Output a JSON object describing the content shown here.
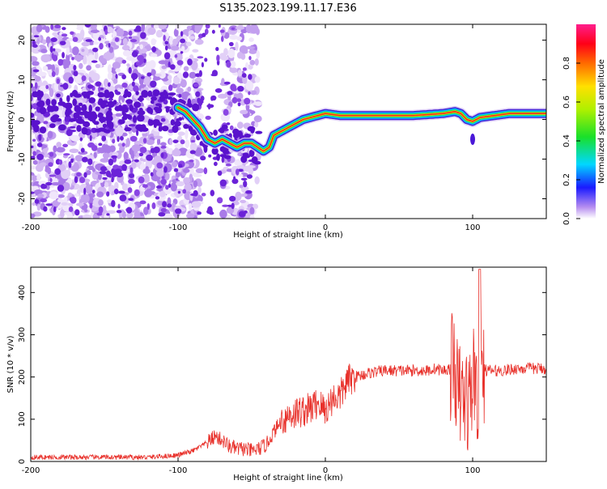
{
  "title": "S135.2023.199.11.17.E36",
  "colors": {
    "snr_line": "#e8302a",
    "frame": "#000000"
  },
  "chart_data": [
    {
      "id": "spectrogram",
      "type": "heatmap",
      "xlabel": "Height of straight line (km)",
      "ylabel": "Frequency (Hz)",
      "xlim": [
        -200,
        150
      ],
      "ylim": [
        -25,
        24
      ],
      "xticks": [
        -200,
        -100,
        0,
        100
      ],
      "yticks": [
        -20,
        -10,
        0,
        10,
        20
      ],
      "ridge": [
        [
          -100,
          3
        ],
        [
          -95,
          2
        ],
        [
          -90,
          0
        ],
        [
          -85,
          -2
        ],
        [
          -80,
          -5
        ],
        [
          -75,
          -6
        ],
        [
          -70,
          -5
        ],
        [
          -65,
          -6
        ],
        [
          -60,
          -7
        ],
        [
          -55,
          -6
        ],
        [
          -50,
          -6
        ],
        [
          -46,
          -7
        ],
        [
          -42,
          -8
        ],
        [
          -38,
          -7
        ],
        [
          -35,
          -4
        ],
        [
          -30,
          -3
        ],
        [
          -25,
          -2
        ],
        [
          -20,
          -1
        ],
        [
          -15,
          0
        ],
        [
          -10,
          0.5
        ],
        [
          -5,
          1
        ],
        [
          0,
          1.5
        ],
        [
          10,
          1
        ],
        [
          20,
          1
        ],
        [
          40,
          1
        ],
        [
          60,
          1
        ],
        [
          80,
          1.5
        ],
        [
          88,
          2
        ],
        [
          92,
          1.5
        ],
        [
          96,
          0
        ],
        [
          100,
          -0.5
        ],
        [
          105,
          0.5
        ],
        [
          115,
          1
        ],
        [
          125,
          1.5
        ],
        [
          150,
          1.5
        ]
      ],
      "colorbar": {
        "label": "Normalized spectral amplitude",
        "range": [
          0,
          1
        ],
        "ticks": [
          0.0,
          0.2,
          0.4,
          0.6,
          0.8
        ],
        "tick_labels": [
          "0.0",
          "0.2",
          "0.4",
          "0.6",
          "0.8"
        ]
      }
    },
    {
      "id": "snr",
      "type": "line",
      "xlabel": "Height of straight line (km)",
      "ylabel": "SNR (10 * v/v)",
      "xlim": [
        -200,
        150
      ],
      "ylim": [
        0,
        460
      ],
      "xticks": [
        -200,
        -100,
        0,
        100
      ],
      "yticks": [
        0,
        100,
        200,
        300,
        400
      ],
      "series": [
        {
          "x": [
            -200,
            -180,
            -160,
            -140,
            -120,
            -100,
            -90,
            -80,
            -75,
            -70,
            -65,
            -60,
            -55,
            -50,
            -45,
            -40,
            -35,
            -30,
            -25,
            -20,
            -15,
            -10,
            -5,
            0,
            5,
            10,
            15,
            20,
            25,
            30,
            40,
            50,
            60,
            70,
            75,
            80,
            85,
            88,
            90,
            92,
            94,
            96,
            98,
            100,
            102,
            104,
            106,
            110,
            120,
            130,
            140,
            150
          ],
          "y": [
            10,
            10,
            10,
            10,
            10,
            15,
            25,
            45,
            60,
            50,
            35,
            30,
            30,
            25,
            30,
            40,
            70,
            95,
            110,
            115,
            120,
            125,
            140,
            120,
            150,
            155,
            190,
            200,
            205,
            210,
            215,
            215,
            215,
            215,
            220,
            215,
            220,
            230,
            150,
            160,
            140,
            150,
            140,
            200,
            210,
            130,
            220,
            215,
            215,
            220,
            220,
            220
          ]
        }
      ]
    }
  ]
}
